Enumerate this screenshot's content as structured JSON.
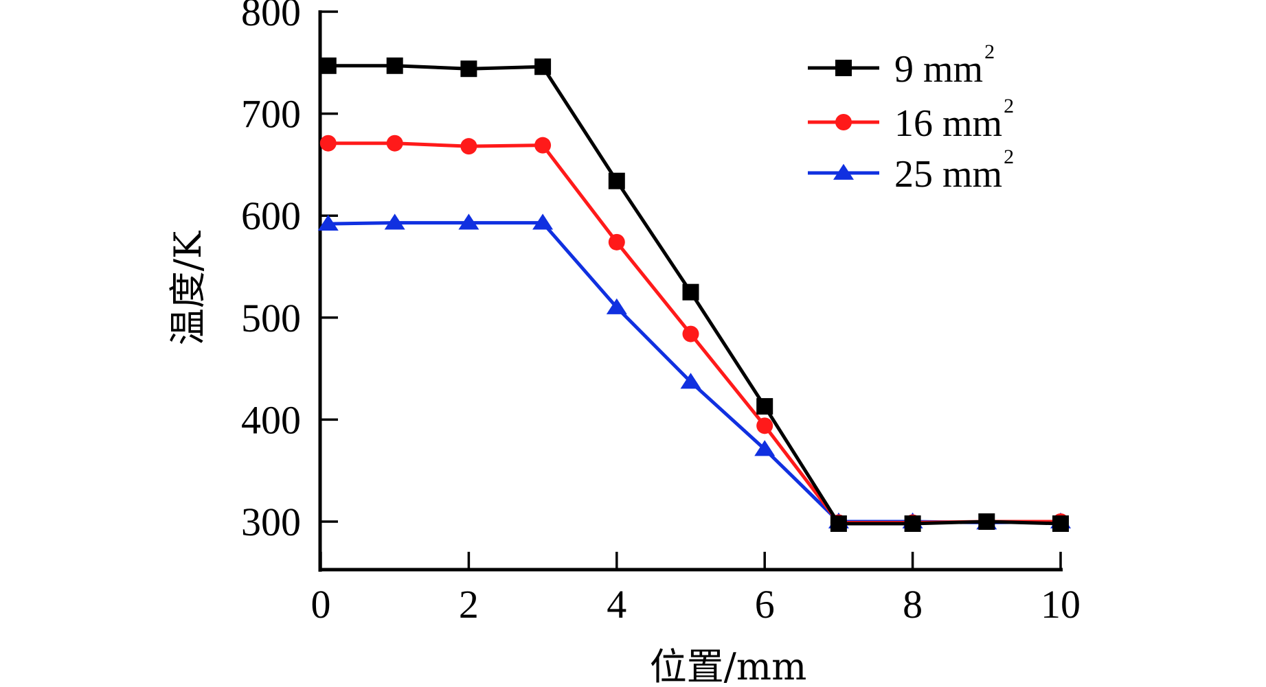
{
  "chart_data": {
    "type": "line",
    "title": "",
    "xlabel": "位置/mm",
    "ylabel": "温度/K",
    "xlim": [
      0,
      10
    ],
    "ylim": [
      250,
      800
    ],
    "xticks": [
      0,
      2,
      4,
      6,
      8,
      10
    ],
    "xtick_labels": [
      "0",
      "2",
      "4",
      "6",
      "8",
      "10"
    ],
    "yticks": [
      300,
      400,
      500,
      600,
      700,
      800
    ],
    "ytick_labels": [
      "300",
      "400",
      "500",
      "600",
      "700",
      "800"
    ],
    "grid": false,
    "legend_position": "top-right",
    "series": [
      {
        "name": "9 mm",
        "superscript": "2",
        "color": "#000000",
        "marker": "square",
        "x": [
          0.1,
          1,
          2,
          3,
          4,
          5,
          6,
          7,
          8,
          9,
          10
        ],
        "y": [
          747,
          747,
          744,
          746,
          634,
          525,
          413,
          298,
          298,
          300,
          298
        ]
      },
      {
        "name": "16 mm",
        "superscript": "2",
        "color": "#ff1a1a",
        "marker": "circle",
        "x": [
          0.1,
          1,
          2,
          3,
          4,
          5,
          6,
          7,
          8,
          9,
          10
        ],
        "y": [
          671,
          671,
          668,
          669,
          574,
          484,
          394,
          299,
          299,
          300,
          300
        ]
      },
      {
        "name": "25 mm",
        "superscript": "2",
        "color": "#1030e0",
        "marker": "triangle",
        "x": [
          0.1,
          1,
          2,
          3,
          4,
          5,
          6,
          7,
          8,
          9,
          10
        ],
        "y": [
          592,
          593,
          593,
          593,
          510,
          437,
          371,
          300,
          300,
          299,
          300
        ]
      }
    ]
  }
}
